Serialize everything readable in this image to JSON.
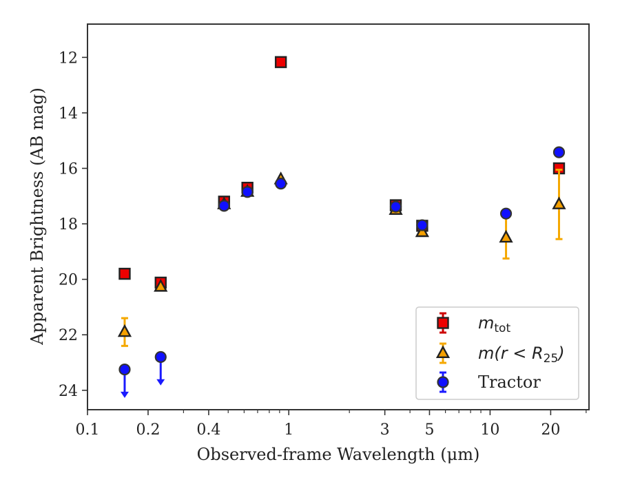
{
  "chart_data": {
    "type": "scatter",
    "xlabel": "Observed-frame Wavelength (μm)",
    "ylabel": "Apparent Brightness (AB mag)",
    "x_scale": "log",
    "xlim": [
      0.1,
      31
    ],
    "ylim": [
      24.7,
      10.8
    ],
    "y_inverted": true,
    "x_ticks": [
      {
        "value": 0.1,
        "label": "0.1"
      },
      {
        "value": 0.2,
        "label": "0.2"
      },
      {
        "value": 0.4,
        "label": "0.4"
      },
      {
        "value": 1,
        "label": "1"
      },
      {
        "value": 3,
        "label": "3"
      },
      {
        "value": 5,
        "label": "5"
      },
      {
        "value": 10,
        "label": "10"
      },
      {
        "value": 20,
        "label": "20"
      }
    ],
    "x_minor_ticks": [
      0.3,
      0.5,
      0.6,
      0.7,
      0.8,
      0.9,
      2,
      4,
      6,
      7,
      8,
      9,
      30
    ],
    "y_ticks": [
      {
        "value": 12,
        "label": "12"
      },
      {
        "value": 14,
        "label": "14"
      },
      {
        "value": 16,
        "label": "16"
      },
      {
        "value": 18,
        "label": "18"
      },
      {
        "value": 20,
        "label": "20"
      },
      {
        "value": 22,
        "label": "22"
      },
      {
        "value": 24,
        "label": "24"
      }
    ],
    "legend": {
      "position": "lower right",
      "entries": [
        {
          "series_index": 0,
          "label": "m",
          "subscript": "tot"
        },
        {
          "series_index": 1,
          "label": "m(r < R",
          "subscript": "25",
          "suffix": ")"
        },
        {
          "series_index": 2,
          "label": "Tractor"
        }
      ]
    },
    "series": [
      {
        "name": "m_tot",
        "marker": "square",
        "color": "#ee0000",
        "edge_color": "#222222",
        "errbar_color": "#cc0000",
        "points": [
          {
            "x": 0.153,
            "y": 19.8
          },
          {
            "x": 0.231,
            "y": 20.12
          },
          {
            "x": 0.477,
            "y": 17.2
          },
          {
            "x": 0.623,
            "y": 16.7
          },
          {
            "x": 0.913,
            "y": 12.17
          },
          {
            "x": 3.4,
            "y": 17.33
          },
          {
            "x": 4.6,
            "y": 18.07
          },
          {
            "x": 22,
            "y": 16.0
          }
        ]
      },
      {
        "name": "m(r < R25)",
        "marker": "triangle",
        "color": "#f5a000",
        "edge_color": "#222222",
        "errbar_color": "#f5a800",
        "points": [
          {
            "x": 0.153,
            "y": 21.9,
            "yerr": 0.5
          },
          {
            "x": 0.231,
            "y": 20.27
          },
          {
            "x": 0.477,
            "y": 17.3
          },
          {
            "x": 0.623,
            "y": 16.85
          },
          {
            "x": 0.913,
            "y": 16.4
          },
          {
            "x": 3.4,
            "y": 17.5
          },
          {
            "x": 4.6,
            "y": 18.3
          },
          {
            "x": 12,
            "y": 18.5,
            "yerr": 0.75
          },
          {
            "x": 22,
            "y": 17.3,
            "yerr_low": 1.25,
            "yerr_high": 1.25
          }
        ]
      },
      {
        "name": "Tractor",
        "marker": "circle",
        "color": "#1010ff",
        "edge_color": "#333333",
        "errbar_color": "#1a1aff",
        "points": [
          {
            "x": 0.153,
            "y": 23.25,
            "upper_limit": true
          },
          {
            "x": 0.231,
            "y": 22.8,
            "upper_limit": true
          },
          {
            "x": 0.477,
            "y": 17.35
          },
          {
            "x": 0.623,
            "y": 16.85
          },
          {
            "x": 0.913,
            "y": 16.55
          },
          {
            "x": 3.4,
            "y": 17.38
          },
          {
            "x": 4.6,
            "y": 18.05
          },
          {
            "x": 12,
            "y": 17.63
          },
          {
            "x": 22,
            "y": 15.42
          }
        ]
      }
    ]
  }
}
